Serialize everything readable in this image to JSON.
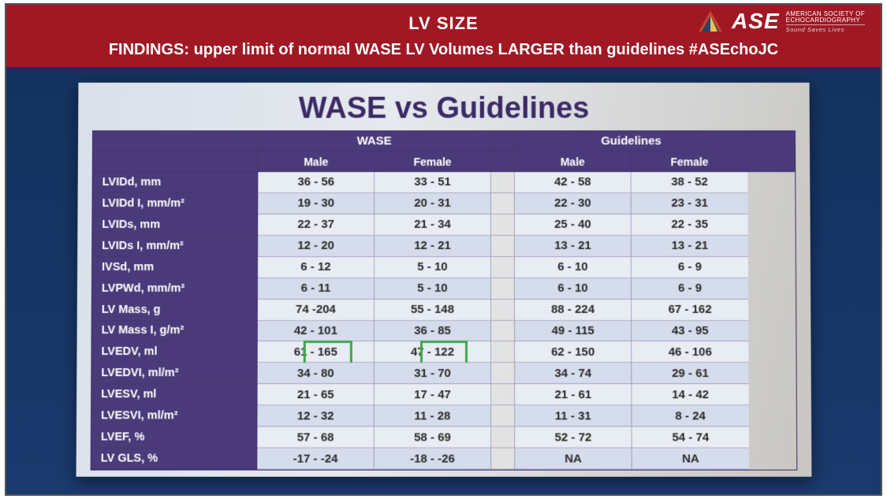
{
  "header": {
    "title": "LV SIZE",
    "findings": "FINDINGS: upper limit of normal WASE  LV Volumes LARGER than guidelines #ASEchoJC",
    "logo": {
      "big": "ASE",
      "line1": "AMERICAN SOCIETY OF",
      "line2": "ECHOCARDIOGRAPHY",
      "tag": "Sound Saves Lives"
    }
  },
  "slide": {
    "title": "WASE vs Guidelines",
    "group_headers": {
      "wase": "WASE",
      "guidelines": "Guidelines"
    },
    "sub_headers": {
      "male": "Male",
      "female": "Female"
    },
    "rows": [
      {
        "label": "LVIDd, mm",
        "wm": "36 - 56",
        "wf": "33 - 51",
        "gm": "42 - 58",
        "gf": "38 - 52"
      },
      {
        "label": "LVIDd I, mm/m²",
        "wm": "19 - 30",
        "wf": "20 - 31",
        "gm": "22 - 30",
        "gf": "23 - 31"
      },
      {
        "label": "LVIDs, mm",
        "wm": "22 - 37",
        "wf": "21 - 34",
        "gm": "25 - 40",
        "gf": "22 - 35"
      },
      {
        "label": "LVIDs I, mm/m²",
        "wm": "12 - 20",
        "wf": "12 - 21",
        "gm": "13 - 21",
        "gf": "13 - 21"
      },
      {
        "label": "IVSd, mm",
        "wm": "6 - 12",
        "wf": "5 - 10",
        "gm": "6 - 10",
        "gf": "6 - 9"
      },
      {
        "label": "LVPWd, mm/m²",
        "wm": "6 - 11",
        "wf": "5 - 10",
        "gm": "6 - 10",
        "gf": "6 - 9"
      },
      {
        "label": "LV Mass, g",
        "wm": "74 -204",
        "wf": "55 - 148",
        "gm": "88 - 224",
        "gf": "67 - 162"
      },
      {
        "label": "LV Mass I, g/m²",
        "wm": "42 - 101",
        "wf": "36 - 85",
        "gm": "49 - 115",
        "gf": "43 - 95"
      },
      {
        "label": "LVEDV, ml",
        "wm": "61 - 165",
        "wf": "47 - 122",
        "gm": "62 - 150",
        "gf": "46 - 106"
      },
      {
        "label": "LVEDVI, ml/m²",
        "wm": "34 - 80",
        "wf": "31 - 70",
        "gm": "34 - 74",
        "gf": "29 - 61"
      },
      {
        "label": "LVESV, ml",
        "wm": "21 - 65",
        "wf": "17 - 47",
        "gm": "21 - 61",
        "gf": "14 - 42"
      },
      {
        "label": "LVESVI, ml/m²",
        "wm": "12 - 32",
        "wf": "11 - 28",
        "gm": "11 - 31",
        "gf": "8 - 24"
      },
      {
        "label": "LVEF, %",
        "wm": "57 - 68",
        "wf": "58 - 69",
        "gm": "52 - 72",
        "gf": "54 - 74"
      },
      {
        "label": "LV GLS, %",
        "wm": "-17 - -24",
        "wf": "-18 - -26",
        "gm": "NA",
        "gf": "NA"
      }
    ],
    "highlight_rows": [
      8,
      9,
      10,
      11
    ],
    "highlight_color": "#3da54a"
  },
  "colors": {
    "band": "#a01824",
    "slide_bg": "#1a3a6e",
    "table_header": "#4a3a7a",
    "stripe_a": "#e8ecf3",
    "stripe_b": "#d5dceb"
  }
}
